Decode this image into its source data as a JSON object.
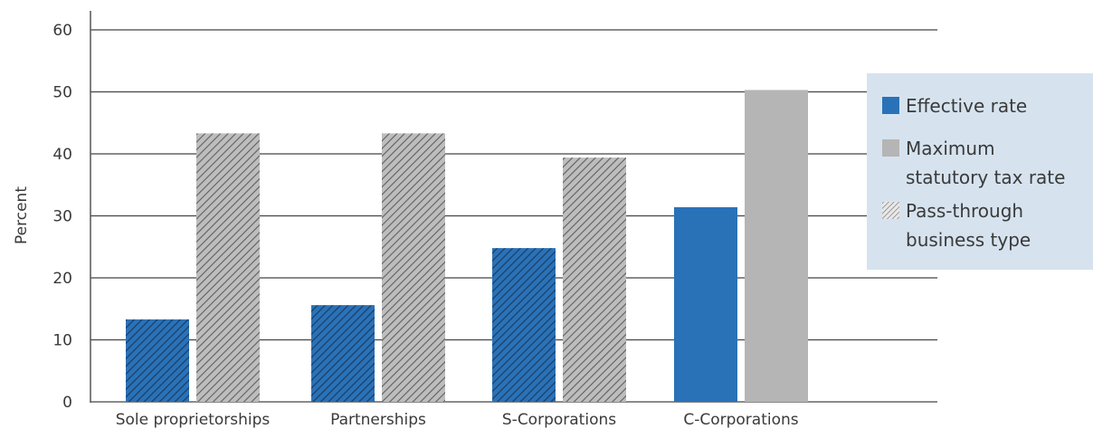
{
  "chart_data": {
    "type": "bar",
    "title": "",
    "xlabel": "",
    "ylabel": "Percent",
    "ylim": [
      0,
      60
    ],
    "yticks": [
      0,
      10,
      20,
      30,
      40,
      50,
      60
    ],
    "grid": true,
    "categories": [
      "Sole proprietorships",
      "Partnerships",
      "S-Corporations",
      "C-Corporations"
    ],
    "pass_through": [
      true,
      true,
      true,
      false
    ],
    "series": [
      {
        "name": "Effective rate",
        "color": "#2a72b8",
        "values": [
          13.3,
          15.6,
          24.8,
          31.4
        ]
      },
      {
        "name": "Maximum statutory tax rate",
        "color": "#b5b5b5",
        "values": [
          43.3,
          43.3,
          39.4,
          50.3
        ]
      }
    ],
    "legend": {
      "placement": "right",
      "background": "#d6e3ef",
      "items": [
        {
          "id": "effective",
          "lines": [
            "Effective rate"
          ],
          "swatch": "solid-blue"
        },
        {
          "id": "maximum",
          "lines": [
            "Maximum",
            "statutory tax rate"
          ],
          "swatch": "solid-gray"
        },
        {
          "id": "passthrough",
          "lines": [
            "Pass-through",
            "business type"
          ],
          "swatch": "hatched"
        }
      ]
    }
  }
}
